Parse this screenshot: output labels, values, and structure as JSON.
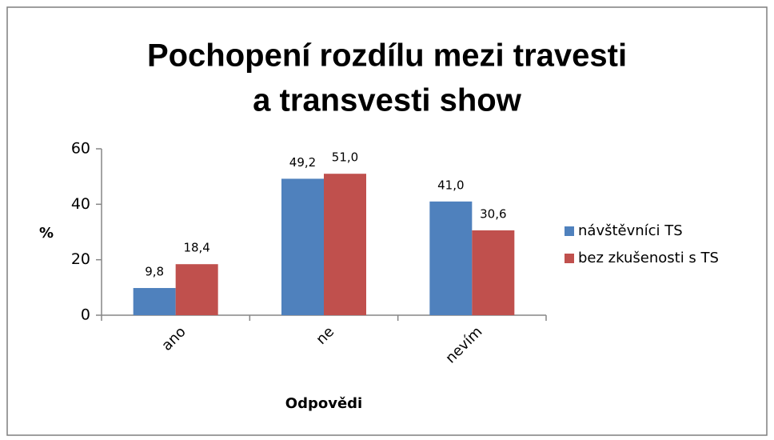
{
  "chart_data": {
    "type": "bar",
    "title": [
      "Pochopení rozdílu mezi travesti",
      "a transvesti show"
    ],
    "y_label": "%",
    "x_label": "Odpovědi",
    "categories": [
      "ano",
      "ne",
      "nevím"
    ],
    "series": [
      {
        "name": "návštěvníci TS",
        "color": "#4f81bd",
        "values": [
          9.8,
          49.2,
          41.0
        ],
        "value_labels": [
          "9,8",
          "49,2",
          "41,0"
        ]
      },
      {
        "name": "bez zkušenosti s TS",
        "color": "#c0504d",
        "values": [
          18.4,
          51.0,
          30.6
        ],
        "value_labels": [
          "18,4",
          "51,0",
          "30,6"
        ]
      }
    ],
    "ylim": [
      0,
      60
    ],
    "yticks": [
      0,
      20,
      40,
      60
    ],
    "grid": false,
    "legend": "right"
  }
}
